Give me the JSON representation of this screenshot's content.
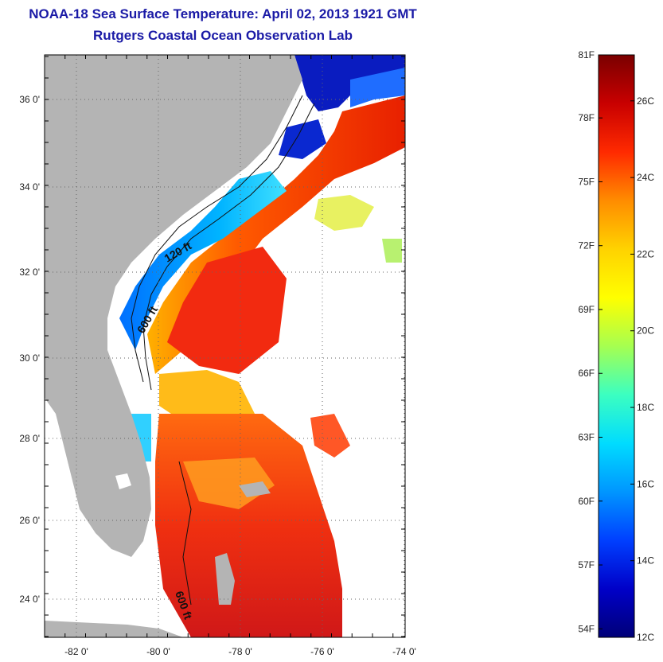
{
  "header": {
    "title": "NOAA-18 Sea Surface Temperature:  April 02, 2013 1921 GMT",
    "subtitle": "Rutgers Coastal Ocean Observation Lab"
  },
  "map": {
    "lon_labels": [
      "-82 0'",
      "-80 0'",
      "-78 0'",
      "-76 0'",
      "-74 0'"
    ],
    "lat_labels": [
      "36 0'",
      "34 0'",
      "32 0'",
      "30 0'",
      "28 0'",
      "26 0'",
      "24 0'"
    ],
    "contour_labels": [
      "120 ft",
      "600 ft",
      "600 ft"
    ],
    "colors": {
      "land": "#b4b4b4",
      "no_data": "#ffffff",
      "grid": "#555555"
    }
  },
  "colorbar": {
    "fahrenheit_labels": [
      "81F",
      "78F",
      "75F",
      "72F",
      "69F",
      "66F",
      "63F",
      "60F",
      "57F",
      "54F"
    ],
    "celsius_labels": [
      "26C",
      "24C",
      "22C",
      "20C",
      "18C",
      "16C",
      "14C",
      "12C"
    ],
    "range_c": [
      12,
      27.2
    ],
    "stops": [
      "#7a0000",
      "#c80000",
      "#ff2a00",
      "#ff8c00",
      "#ffd200",
      "#ffff00",
      "#a6ff50",
      "#3cffc0",
      "#00dcff",
      "#0096ff",
      "#0040ff",
      "#0000c8",
      "#000078"
    ]
  }
}
